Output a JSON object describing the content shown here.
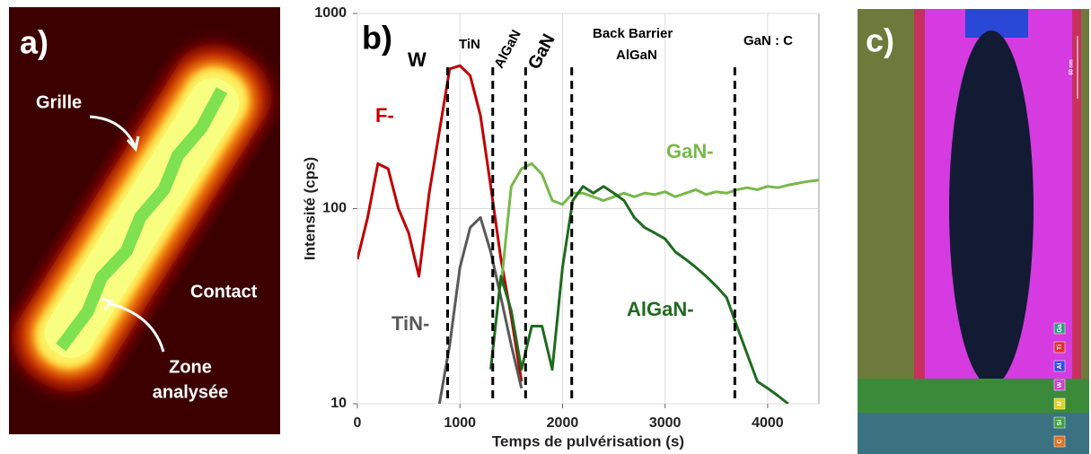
{
  "panel_a": {
    "label": "a)",
    "grille": "Grille",
    "contact": "Contact",
    "zone": [
      "Zone",
      "analysée"
    ]
  },
  "chart_data": {
    "type": "line",
    "panel_label": "b)",
    "x_label": "Temps de pulvérisation (s)",
    "y_label": "Intensité (cps)",
    "x": [
      0,
      100,
      200,
      300,
      400,
      500,
      600,
      700,
      800,
      900,
      1000,
      1100,
      1200,
      1300,
      1400,
      1500,
      1600,
      1700,
      1800,
      1900,
      2000,
      2100,
      2200,
      2300,
      2400,
      2500,
      2600,
      2700,
      2800,
      2900,
      3000,
      3100,
      3200,
      3300,
      3400,
      3500,
      3600,
      3700,
      3800,
      3900,
      4000,
      4100,
      4200,
      4300,
      4400,
      4500
    ],
    "series": [
      {
        "name": "F-",
        "color": "#c00000",
        "values": [
          55,
          90,
          170,
          160,
          100,
          75,
          45,
          120,
          250,
          520,
          540,
          480,
          300,
          130,
          55,
          28,
          13,
          null,
          null,
          null,
          null,
          null,
          null,
          null,
          null,
          null,
          null,
          null,
          null,
          null,
          null,
          null,
          null,
          null,
          null,
          null,
          null,
          null,
          null,
          null,
          null,
          null,
          null,
          null,
          null,
          null
        ]
      },
      {
        "name": "TiN-",
        "color": "#595959",
        "values": [
          null,
          null,
          null,
          null,
          null,
          null,
          null,
          null,
          10,
          20,
          50,
          80,
          90,
          60,
          35,
          20,
          12,
          null,
          null,
          null,
          null,
          null,
          null,
          null,
          null,
          null,
          null,
          null,
          null,
          null,
          null,
          null,
          null,
          null,
          null,
          null,
          null,
          null,
          null,
          null,
          null,
          null,
          null,
          null,
          null,
          null
        ]
      },
      {
        "name": "GaN-",
        "color": "#77b84a",
        "values": [
          null,
          null,
          null,
          null,
          null,
          null,
          null,
          null,
          null,
          null,
          null,
          null,
          null,
          null,
          40,
          130,
          160,
          170,
          150,
          110,
          105,
          120,
          120,
          115,
          110,
          115,
          120,
          115,
          120,
          118,
          122,
          115,
          120,
          125,
          118,
          122,
          120,
          125,
          128,
          125,
          130,
          128,
          132,
          135,
          138,
          140
        ]
      },
      {
        "name": "AlGaN-",
        "color": "#1e6b1e",
        "values": [
          null,
          null,
          null,
          null,
          null,
          null,
          null,
          null,
          null,
          null,
          null,
          null,
          null,
          15,
          45,
          30,
          15,
          25,
          25,
          15,
          50,
          110,
          130,
          120,
          130,
          120,
          110,
          90,
          80,
          75,
          70,
          60,
          55,
          50,
          45,
          40,
          35,
          25,
          18,
          13,
          12,
          11,
          10,
          null,
          null,
          null
        ]
      }
    ],
    "annotations": [
      "W",
      "TiN",
      "AlGaN",
      "GaN",
      "Back Barrier",
      "AlGaN",
      "GaN : C"
    ],
    "boundaries": [
      880,
      1320,
      1640,
      2090,
      3680
    ],
    "xlim": [
      0,
      4500
    ],
    "ylim": [
      10,
      1000
    ],
    "xticks": [
      0,
      1000,
      2000,
      3000,
      4000
    ],
    "yticks": [
      10,
      100,
      1000
    ],
    "log_y": true,
    "grid": true
  },
  "panel_c": {
    "label": "c)",
    "scale_bar": "60 nm",
    "elements": [
      "C",
      "Si",
      "N",
      "W",
      "Al",
      "Ti",
      "Ga"
    ]
  }
}
